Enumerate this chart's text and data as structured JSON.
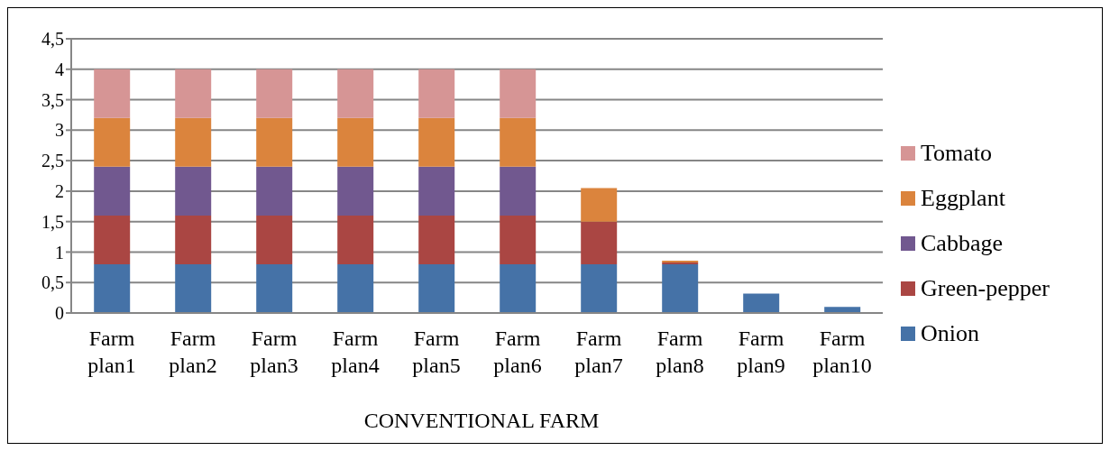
{
  "chart_data": {
    "type": "bar",
    "stacked": true,
    "xlabel": "CONVENTIONAL FARM",
    "categories": [
      "Farm plan1",
      "Farm plan2",
      "Farm plan3",
      "Farm plan4",
      "Farm plan5",
      "Farm plan6",
      "Farm plan7",
      "Farm plan8",
      "Farm plan9",
      "Farm plan10"
    ],
    "series": [
      {
        "name": "Onion",
        "color": "#4572a7",
        "values": [
          0.8,
          0.8,
          0.8,
          0.8,
          0.8,
          0.8,
          0.8,
          0.8,
          0.32,
          0.1
        ]
      },
      {
        "name": "Green-pepper",
        "color": "#aa4643",
        "values": [
          0.8,
          0.8,
          0.8,
          0.8,
          0.8,
          0.8,
          0.7,
          0.03,
          null,
          null
        ]
      },
      {
        "name": "Cabbage",
        "color": "#71588f",
        "values": [
          0.8,
          0.8,
          0.8,
          0.8,
          0.8,
          0.8,
          null,
          null,
          null,
          null
        ]
      },
      {
        "name": "Eggplant",
        "color": "#db843d",
        "values": [
          0.8,
          0.8,
          0.8,
          0.8,
          0.8,
          0.8,
          0.55,
          0.03,
          null,
          null
        ]
      },
      {
        "name": "Tomato",
        "color": "#d69595",
        "values": [
          0.8,
          0.8,
          0.8,
          0.8,
          0.8,
          0.8,
          null,
          null,
          null,
          null
        ]
      }
    ],
    "ylim": [
      0,
      4.5
    ],
    "yticks": [
      {
        "value": 0,
        "label": "0"
      },
      {
        "value": 0.5,
        "label": "0,5"
      },
      {
        "value": 1,
        "label": "1"
      },
      {
        "value": 1.5,
        "label": "1,5"
      },
      {
        "value": 2,
        "label": "2"
      },
      {
        "value": 2.5,
        "label": "2,5"
      },
      {
        "value": 3,
        "label": "3"
      },
      {
        "value": 3.5,
        "label": "3,5"
      },
      {
        "value": 4,
        "label": "4"
      },
      {
        "value": 4.5,
        "label": "4,5"
      }
    ],
    "grid": "y",
    "legend": "right"
  }
}
